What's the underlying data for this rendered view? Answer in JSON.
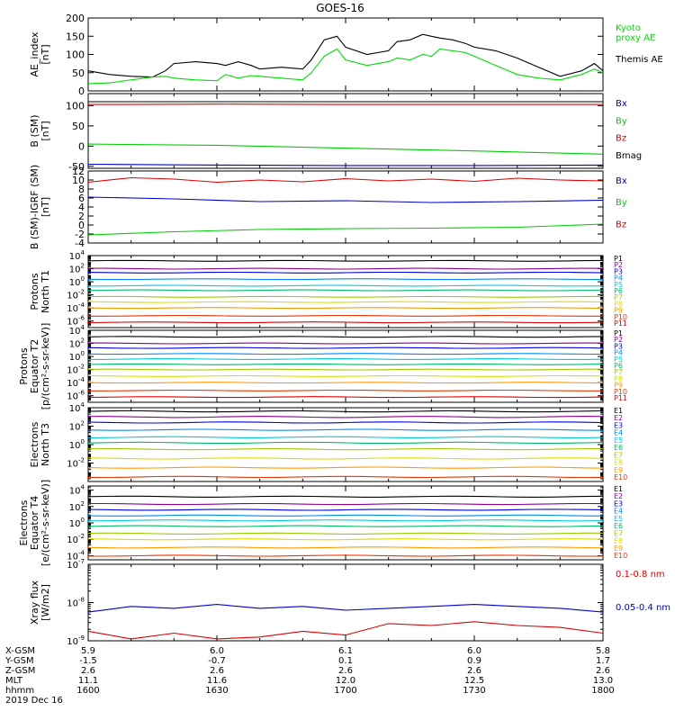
{
  "title": "GOES-16",
  "panels": [
    {
      "key": "ae",
      "ylabel": [
        "AE_index",
        "[nT]"
      ],
      "scale": "linear",
      "ylim": [
        0,
        200
      ],
      "ticks": [
        0,
        50,
        100,
        150,
        200
      ],
      "legend": [
        {
          "lines": [
            "Kyoto",
            "proxy AE"
          ],
          "color": "#00dd00"
        },
        {
          "lines": [
            "Themis AE"
          ],
          "color": "#000000"
        }
      ]
    },
    {
      "key": "bsm",
      "ylabel": [
        "B (SM)",
        "[nT]"
      ],
      "scale": "linear",
      "ylim": [
        -55,
        130
      ],
      "ticks": [
        -50,
        0,
        50,
        100
      ],
      "legend": [
        {
          "lines": [
            "Bx"
          ],
          "color": "#0000cc"
        },
        {
          "lines": [
            "By"
          ],
          "color": "#00cc00"
        },
        {
          "lines": [
            "Bz"
          ],
          "color": "#dd0000"
        },
        {
          "lines": [
            "Bmag"
          ],
          "color": "#000000"
        }
      ]
    },
    {
      "key": "bigrf",
      "ylabel": [
        "B (SM)-IGRF (SM)",
        "[nT]"
      ],
      "scale": "linear",
      "ylim": [
        -4,
        12
      ],
      "ticks": [
        -4,
        -2,
        0,
        2,
        4,
        6,
        8,
        10,
        12
      ],
      "legend": [
        {
          "lines": [
            "Bx"
          ],
          "color": "#0000cc"
        },
        {
          "lines": [
            "By"
          ],
          "color": "#00cc00"
        },
        {
          "lines": [
            "Bz"
          ],
          "color": "#dd0000"
        }
      ]
    },
    {
      "key": "protn",
      "ylabel": [
        "Protons",
        "North T1"
      ],
      "scale": "log",
      "ylim": [
        -7,
        4
      ],
      "ticks": [
        -6,
        -4,
        -2,
        0,
        2,
        4
      ],
      "channels": [
        "P1",
        "P2",
        "P3",
        "P4",
        "P5",
        "P6",
        "P7",
        "P8",
        "P9",
        "P10",
        "P11"
      ]
    },
    {
      "key": "prote",
      "ylabel": [
        "Protons",
        "Equator T2",
        "[p/(cm²-s-sr-keV)]"
      ],
      "scale": "log",
      "ylim": [
        -7,
        4
      ],
      "ticks": [
        -6,
        -4,
        -2,
        0,
        2,
        4
      ],
      "channels": [
        "P1",
        "P2",
        "P3",
        "P4",
        "P5",
        "P6",
        "P7",
        "P8",
        "P9",
        "P10",
        "P11"
      ]
    },
    {
      "key": "elecn",
      "ylabel": [
        "Electrons",
        "North T3"
      ],
      "scale": "log",
      "ylim": [
        -4,
        4
      ],
      "ticks": [
        -2,
        0,
        2,
        4
      ],
      "channels": [
        "E1",
        "E2",
        "E3",
        "E4",
        "E5",
        "E6",
        "E7",
        "E8",
        "E9",
        "E10"
      ]
    },
    {
      "key": "elece",
      "ylabel": [
        "Electrons",
        "Equator T4",
        "[e/(cm²-s-sr-keV)]"
      ],
      "scale": "log",
      "ylim": [
        -4.5,
        4.5
      ],
      "ticks": [
        -4,
        -2,
        0,
        2,
        4
      ],
      "channels": [
        "E1",
        "E2",
        "E3",
        "E4",
        "E5",
        "E6",
        "E7",
        "E8",
        "E9",
        "E10"
      ]
    },
    {
      "key": "xray",
      "ylabel": [
        "Xray flux",
        "[W/m2]"
      ],
      "scale": "log",
      "ylim": [
        -9,
        -7
      ],
      "ticks": [
        -9,
        -8,
        -7
      ],
      "legend": [
        {
          "lines": [
            "0.1-0.8 nm"
          ],
          "color": "#dd0000"
        },
        {
          "lines": [
            "0.05-0.4 nm"
          ],
          "color": "#0000cc"
        }
      ]
    }
  ],
  "footer": {
    "rows": [
      {
        "label": "X-GSM",
        "values": [
          "5.9",
          "6.0",
          "6.1",
          "6.0",
          "5.8"
        ]
      },
      {
        "label": "Y-GSM",
        "values": [
          "-1.5",
          "-0.7",
          "0.1",
          "0.9",
          "1.7"
        ]
      },
      {
        "label": "Z-GSM",
        "values": [
          "2.6",
          "2.6",
          "2.6",
          "2.6",
          "2.6"
        ]
      },
      {
        "label": "MLT",
        "values": [
          "11.1",
          "11.6",
          "12.0",
          "12.5",
          "13.0"
        ]
      },
      {
        "label": "hhmm",
        "values": [
          "1600",
          "1630",
          "1700",
          "1730",
          "1800"
        ]
      }
    ],
    "date": "2019 Dec 16"
  },
  "colors": {
    "channels": [
      "#000000",
      "#8b0090",
      "#0000dd",
      "#0088ff",
      "#00ccdd",
      "#00bb66",
      "#99cc00",
      "#dddd00",
      "#ff9900",
      "#ee3300",
      "#dd0000"
    ]
  },
  "chart_data": [
    {
      "type": "line",
      "title": "GOES-16",
      "ylabel": "AE_index [nT]",
      "x_range": [
        "1600",
        "1800"
      ],
      "ylim": [
        0,
        200
      ],
      "series": [
        {
          "name": "Themis AE",
          "color": "#000000",
          "x": [
            0,
            5,
            10,
            15,
            18,
            20,
            25,
            30,
            32,
            35,
            38,
            40,
            45,
            50,
            52,
            55,
            58,
            60,
            65,
            70,
            72,
            75,
            78,
            80,
            82,
            85,
            88,
            90,
            95,
            100,
            105,
            110,
            115,
            118,
            120
          ],
          "y": [
            55,
            45,
            40,
            38,
            55,
            75,
            80,
            75,
            70,
            80,
            70,
            60,
            65,
            60,
            85,
            140,
            150,
            120,
            100,
            110,
            135,
            140,
            155,
            150,
            145,
            140,
            130,
            120,
            110,
            90,
            65,
            40,
            55,
            75,
            55
          ]
        },
        {
          "name": "Kyoto proxy AE",
          "color": "#00dd00",
          "x": [
            0,
            5,
            10,
            15,
            18,
            20,
            25,
            30,
            32,
            35,
            38,
            40,
            45,
            50,
            52,
            55,
            58,
            60,
            65,
            70,
            72,
            75,
            78,
            80,
            82,
            85,
            88,
            90,
            95,
            100,
            105,
            110,
            115,
            118,
            120
          ],
          "y": [
            20,
            22,
            30,
            38,
            40,
            35,
            30,
            28,
            45,
            35,
            42,
            40,
            35,
            30,
            50,
            95,
            115,
            85,
            70,
            80,
            90,
            85,
            100,
            95,
            115,
            110,
            105,
            95,
            70,
            45,
            35,
            30,
            45,
            60,
            50
          ]
        }
      ]
    },
    {
      "type": "line",
      "ylabel": "B (SM) [nT]",
      "ylim": [
        -55,
        130
      ],
      "series": [
        {
          "name": "Bmag",
          "color": "#000000",
          "x": [
            0,
            120
          ],
          "y": [
            110,
            110
          ]
        },
        {
          "name": "Bz",
          "color": "#dd0000",
          "x": [
            0,
            30,
            60,
            90,
            120
          ],
          "y": [
            103,
            104,
            103,
            103,
            103
          ]
        },
        {
          "name": "By",
          "color": "#00cc00",
          "x": [
            0,
            30,
            60,
            90,
            120
          ],
          "y": [
            5,
            2,
            -5,
            -12,
            -20
          ]
        },
        {
          "name": "Bx",
          "color": "#0000cc",
          "x": [
            0,
            30,
            60,
            90,
            120
          ],
          "y": [
            -45,
            -47,
            -48,
            -48,
            -47
          ]
        }
      ]
    },
    {
      "type": "line",
      "ylabel": "B (SM)-IGRF (SM) [nT]",
      "ylim": [
        -4,
        12
      ],
      "series": [
        {
          "name": "Bz",
          "color": "#dd0000",
          "x": [
            0,
            10,
            20,
            30,
            40,
            50,
            60,
            70,
            80,
            90,
            100,
            110,
            120
          ],
          "y": [
            9.5,
            10.5,
            10.2,
            9.5,
            10,
            9.6,
            10.3,
            9.8,
            10.2,
            9.7,
            10.4,
            10,
            9.8
          ]
        },
        {
          "name": "Bx",
          "color": "#0000cc",
          "x": [
            0,
            20,
            40,
            60,
            80,
            100,
            120
          ],
          "y": [
            6.2,
            5.8,
            5.2,
            5.4,
            5,
            5.2,
            5.5
          ]
        },
        {
          "name": "By",
          "color": "#00cc00",
          "x": [
            0,
            20,
            40,
            60,
            80,
            100,
            120
          ],
          "y": [
            -2.2,
            -1.5,
            -1,
            -0.8,
            -0.7,
            -0.5,
            0.2
          ]
        }
      ]
    },
    {
      "type": "line",
      "scale": "log",
      "ylabel": "Protons North T1",
      "series_names": [
        "P1",
        "P2",
        "P3",
        "P4",
        "P5",
        "P6",
        "P7",
        "P8",
        "P9",
        "P10",
        "P11"
      ],
      "log10_values": [
        3.2,
        2.0,
        1.4,
        0.4,
        -0.6,
        -1.3,
        -2.3,
        -3.1,
        -4.0,
        -5.2,
        -6.2
      ]
    },
    {
      "type": "line",
      "scale": "log",
      "ylabel": "Protons Equator T2 [p/(cm²-s-sr-keV)]",
      "series_names": [
        "P1",
        "P2",
        "P3",
        "P4",
        "P5",
        "P6",
        "P7",
        "P8",
        "P9",
        "P10",
        "P11"
      ],
      "log10_values": [
        3.0,
        2.0,
        1.3,
        0.4,
        -0.4,
        -1.2,
        -2.0,
        -3.0,
        -4.0,
        -5.2,
        -6.2
      ]
    },
    {
      "type": "line",
      "scale": "log",
      "ylabel": "Electrons North T3",
      "series_names": [
        "E1",
        "E2",
        "E3",
        "E4",
        "E5",
        "E6",
        "E7",
        "E8",
        "E9",
        "E10"
      ],
      "log10_values": [
        3.6,
        3.0,
        2.4,
        1.6,
        0.8,
        0.2,
        -0.5,
        -1.5,
        -2.5,
        -3.5
      ]
    },
    {
      "type": "line",
      "scale": "log",
      "ylabel": "Electrons Equator T4 [e/(cm²-s-sr-keV)]",
      "series_names": [
        "E1",
        "E2",
        "E3",
        "E4",
        "E5",
        "E6",
        "E7",
        "E8",
        "E9",
        "E10"
      ],
      "log10_values": [
        3.2,
        2.3,
        1.6,
        0.9,
        0.3,
        -0.4,
        -1.3,
        -2.0,
        -3.0,
        -4.0
      ]
    },
    {
      "type": "line",
      "scale": "log",
      "ylabel": "Xray flux [W/m2]",
      "ylim_log10": [
        -9,
        -7
      ],
      "series": [
        {
          "name": "0.05-0.4 nm",
          "color": "#0000cc",
          "x": [
            0,
            10,
            20,
            30,
            40,
            50,
            60,
            70,
            80,
            90,
            100,
            110,
            120
          ],
          "log10_y": [
            -8.25,
            -8.1,
            -8.15,
            -8.05,
            -8.15,
            -8.1,
            -8.2,
            -8.15,
            -8.1,
            -8.05,
            -8.1,
            -8.15,
            -8.25
          ]
        },
        {
          "name": "0.1-0.8 nm",
          "color": "#dd0000",
          "x": [
            0,
            10,
            20,
            30,
            40,
            50,
            60,
            70,
            80,
            90,
            100,
            110,
            120
          ],
          "log10_y": [
            -8.75,
            -8.95,
            -8.8,
            -8.95,
            -8.9,
            -8.75,
            -8.85,
            -8.55,
            -8.6,
            -8.5,
            -8.6,
            -8.65,
            -8.8
          ]
        }
      ]
    }
  ]
}
